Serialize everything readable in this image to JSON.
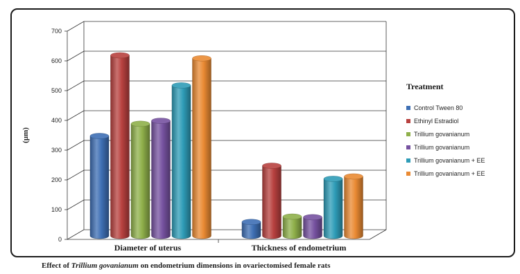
{
  "chart_data": {
    "type": "bar",
    "style": "3d-cylinder",
    "title": "",
    "ylabel": "(µm)",
    "xlabel": "",
    "ylim": [
      0,
      700
    ],
    "yticks": [
      "0",
      "100",
      "200",
      "300",
      "400",
      "500",
      "600",
      "700"
    ],
    "grid": true,
    "legend_title": "Treatment",
    "legend_position": "right",
    "categories": [
      "Diameter of uterus",
      "Thickness of endometrium"
    ],
    "series": [
      {
        "name": "Control Tween 80",
        "color": "#3e6fb4",
        "values": [
          336,
          47
        ]
      },
      {
        "name": "Ethinyl Estradiol",
        "color": "#b8413f",
        "values": [
          607,
          236
        ]
      },
      {
        "name": "Trillium govanianum",
        "color": "#8fb04a",
        "values": [
          377,
          65
        ]
      },
      {
        "name": "Trillium govanianum",
        "color": "#7652a0",
        "values": [
          387,
          63
        ]
      },
      {
        "name": "Trillium govanianum + EE",
        "color": "#2e9cb7",
        "values": [
          506,
          192
        ]
      },
      {
        "name": "Trillium govanianum + EE",
        "color": "#ea8a33",
        "values": [
          597,
          200
        ]
      }
    ]
  },
  "caption": {
    "prefix": "Effect of ",
    "italic": "Trillium govanianum",
    "suffix": " on  endometrium dimensions in ovariectomised female rats"
  }
}
